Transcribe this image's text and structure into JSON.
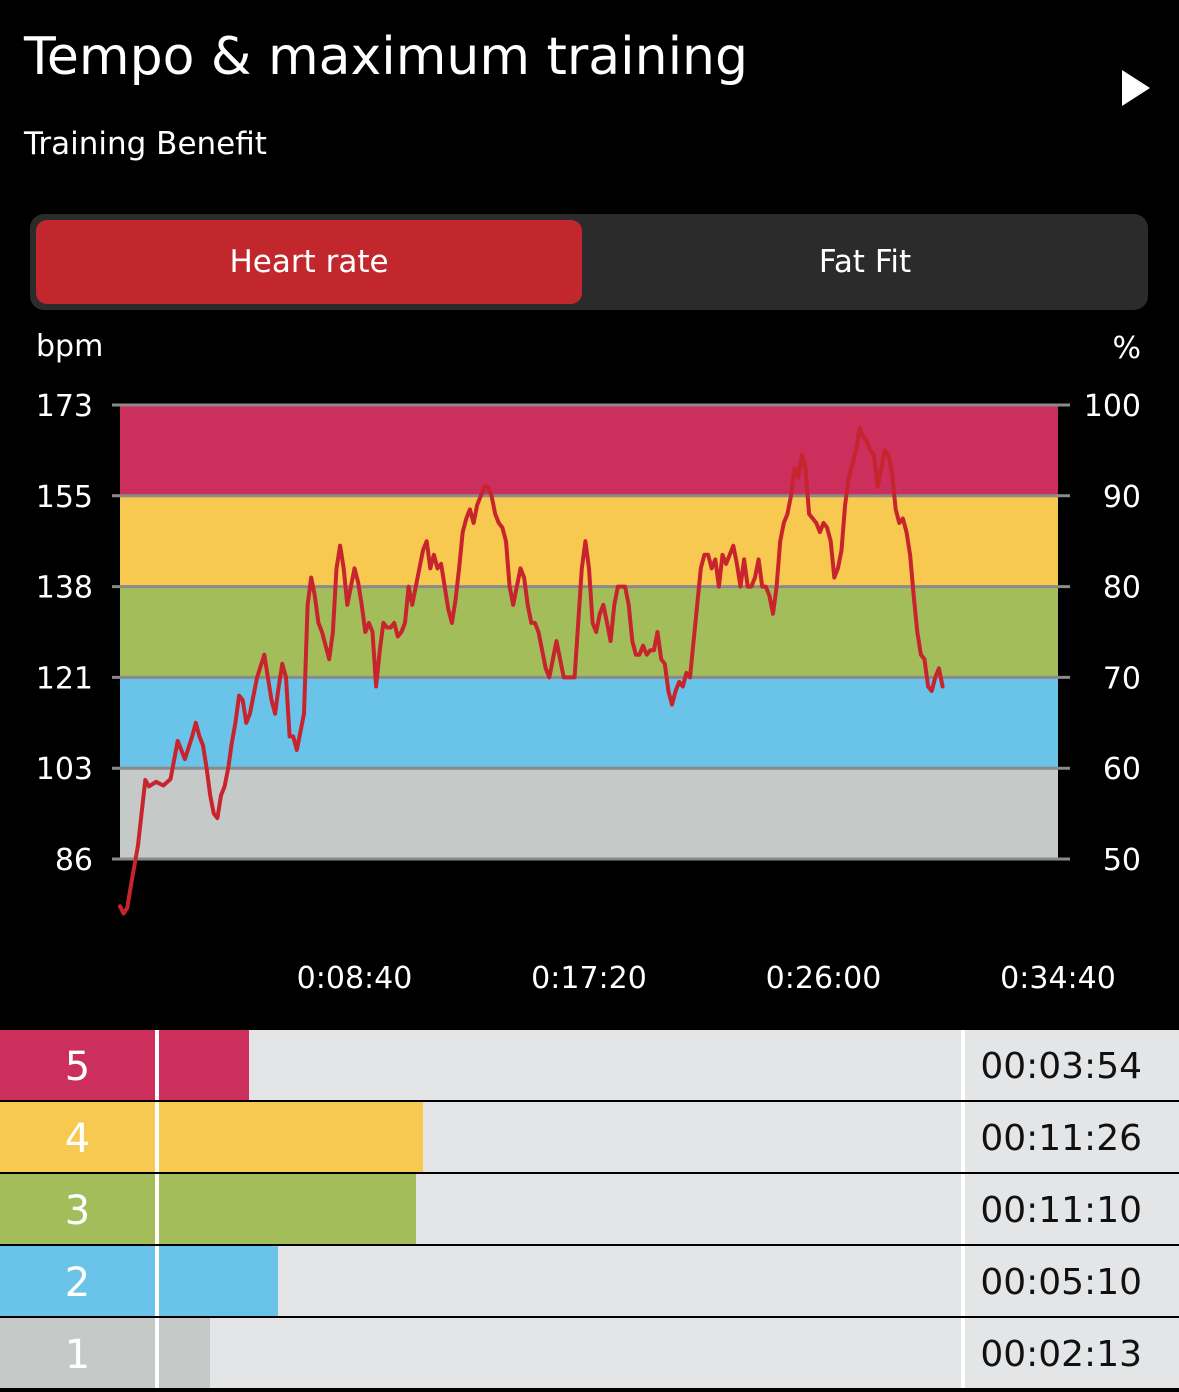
{
  "header": {
    "title": "Tempo & maximum training",
    "subtitle": "Training Benefit"
  },
  "icons": {
    "play": "play-triangle-icon"
  },
  "tabs": [
    {
      "label": "Heart rate",
      "active": true
    },
    {
      "label": "Fat Fit",
      "active": false
    }
  ],
  "colors": {
    "accent": "#c1272d",
    "line": "#c8242d",
    "zone5": "#cc2f5b",
    "zone4": "#f7c950",
    "zone3": "#a3bd5b",
    "zone2": "#6ac3e8",
    "zone1": "#c5cac9"
  },
  "chart_data": {
    "type": "line",
    "left_axis_unit": "bpm",
    "right_axis_unit": "%",
    "yticks_left": [
      "173",
      "155",
      "138",
      "121",
      "103",
      "86"
    ],
    "yticks_right": [
      "100",
      "90",
      "80",
      "70",
      "60",
      "50"
    ],
    "ylim_pct": [
      50,
      100
    ],
    "xlim_sec": [
      0,
      2080
    ],
    "xticks": [
      {
        "sec": 520,
        "label": "0:08:40"
      },
      {
        "sec": 1040,
        "label": "0:17:20"
      },
      {
        "sec": 1560,
        "label": "0:26:00"
      },
      {
        "sec": 2080,
        "label": "0:34:40"
      }
    ],
    "zone_bands_pct": [
      {
        "zone": 5,
        "from": 90,
        "to": 100
      },
      {
        "zone": 4,
        "from": 80,
        "to": 90
      },
      {
        "zone": 3,
        "from": 70,
        "to": 80
      },
      {
        "zone": 2,
        "from": 60,
        "to": 70
      },
      {
        "zone": 1,
        "from": 50,
        "to": 60
      }
    ],
    "series": [
      {
        "points": [
          [
            0,
            44.8
          ],
          [
            8,
            44.0
          ],
          [
            16,
            44.6
          ],
          [
            24,
            47.0
          ],
          [
            40,
            51.5
          ],
          [
            56,
            58.7
          ],
          [
            64,
            58.0
          ],
          [
            80,
            58.5
          ],
          [
            96,
            58.1
          ],
          [
            112,
            58.8
          ],
          [
            128,
            63.0
          ],
          [
            144,
            61.0
          ],
          [
            160,
            63.5
          ],
          [
            168,
            65.0
          ],
          [
            176,
            63.5
          ],
          [
            184,
            62.5
          ],
          [
            192,
            60.0
          ],
          [
            200,
            57.0
          ],
          [
            208,
            55.0
          ],
          [
            216,
            54.5
          ],
          [
            224,
            57.0
          ],
          [
            232,
            58.0
          ],
          [
            240,
            60.0
          ],
          [
            248,
            62.8
          ],
          [
            256,
            65.0
          ],
          [
            264,
            68.0
          ],
          [
            272,
            67.5
          ],
          [
            280,
            65.0
          ],
          [
            288,
            66.0
          ],
          [
            304,
            70.0
          ],
          [
            320,
            72.5
          ],
          [
            328,
            70.0
          ],
          [
            336,
            67.5
          ],
          [
            344,
            66.0
          ],
          [
            352,
            69.0
          ],
          [
            360,
            71.5
          ],
          [
            368,
            70.0
          ],
          [
            376,
            63.5
          ],
          [
            384,
            63.5
          ],
          [
            392,
            62.0
          ],
          [
            400,
            64.0
          ],
          [
            408,
            66.0
          ],
          [
            416,
            78.0
          ],
          [
            424,
            81.0
          ],
          [
            432,
            79.0
          ],
          [
            440,
            76.0
          ],
          [
            448,
            75.0
          ],
          [
            456,
            73.5
          ],
          [
            464,
            72.0
          ],
          [
            472,
            75.0
          ],
          [
            480,
            82.0
          ],
          [
            488,
            84.5
          ],
          [
            496,
            82.0
          ],
          [
            504,
            78.0
          ],
          [
            512,
            80.0
          ],
          [
            520,
            82.0
          ],
          [
            528,
            80.5
          ],
          [
            536,
            78.0
          ],
          [
            544,
            75.0
          ],
          [
            552,
            76.0
          ],
          [
            560,
            75.0
          ],
          [
            568,
            69.0
          ],
          [
            576,
            73.0
          ],
          [
            584,
            76.0
          ],
          [
            592,
            75.5
          ],
          [
            600,
            75.5
          ],
          [
            608,
            76.0
          ],
          [
            616,
            74.5
          ],
          [
            624,
            75.0
          ],
          [
            632,
            76.0
          ],
          [
            640,
            80.0
          ],
          [
            648,
            78.0
          ],
          [
            656,
            80.0
          ],
          [
            664,
            82.0
          ],
          [
            672,
            84.0
          ],
          [
            680,
            85.0
          ],
          [
            688,
            82.0
          ],
          [
            696,
            83.5
          ],
          [
            704,
            82.0
          ],
          [
            712,
            82.5
          ],
          [
            720,
            80.0
          ],
          [
            728,
            77.5
          ],
          [
            736,
            76.0
          ],
          [
            744,
            78.5
          ],
          [
            752,
            82.0
          ],
          [
            760,
            86.0
          ],
          [
            768,
            87.5
          ],
          [
            776,
            88.5
          ],
          [
            784,
            87.0
          ],
          [
            792,
            89.0
          ],
          [
            800,
            90.0
          ],
          [
            808,
            91.0
          ],
          [
            816,
            91.0
          ],
          [
            824,
            90.0
          ],
          [
            832,
            88.0
          ],
          [
            840,
            87.0
          ],
          [
            848,
            86.5
          ],
          [
            856,
            85.0
          ],
          [
            864,
            80.0
          ],
          [
            872,
            78.0
          ],
          [
            880,
            80.0
          ],
          [
            888,
            82.0
          ],
          [
            896,
            81.0
          ],
          [
            904,
            78.0
          ],
          [
            912,
            76.0
          ],
          [
            920,
            76.0
          ],
          [
            928,
            75.0
          ],
          [
            936,
            73.0
          ],
          [
            944,
            71.0
          ],
          [
            952,
            70.0
          ],
          [
            960,
            72.0
          ],
          [
            968,
            74.0
          ],
          [
            976,
            72.0
          ],
          [
            984,
            70.0
          ],
          [
            992,
            70.0
          ],
          [
            1000,
            70.0
          ],
          [
            1008,
            70.0
          ],
          [
            1016,
            76.0
          ],
          [
            1024,
            82.0
          ],
          [
            1032,
            85.0
          ],
          [
            1040,
            82.0
          ],
          [
            1048,
            76.0
          ],
          [
            1056,
            75.0
          ],
          [
            1064,
            77.0
          ],
          [
            1072,
            78.0
          ],
          [
            1080,
            76.0
          ],
          [
            1088,
            74.0
          ],
          [
            1096,
            78.0
          ],
          [
            1104,
            80.0
          ],
          [
            1112,
            80.0
          ],
          [
            1120,
            80.0
          ],
          [
            1128,
            78.0
          ],
          [
            1136,
            74.0
          ],
          [
            1144,
            72.5
          ],
          [
            1152,
            72.5
          ],
          [
            1160,
            73.5
          ],
          [
            1168,
            72.5
          ],
          [
            1176,
            73.0
          ],
          [
            1184,
            73.0
          ],
          [
            1192,
            75.0
          ],
          [
            1200,
            72.0
          ],
          [
            1208,
            71.5
          ],
          [
            1216,
            68.5
          ],
          [
            1224,
            67.0
          ],
          [
            1232,
            68.5
          ],
          [
            1240,
            69.5
          ],
          [
            1248,
            69.0
          ],
          [
            1256,
            70.5
          ],
          [
            1264,
            70.0
          ],
          [
            1272,
            74.0
          ],
          [
            1280,
            78.0
          ],
          [
            1288,
            82.0
          ],
          [
            1296,
            83.5
          ],
          [
            1304,
            83.5
          ],
          [
            1312,
            82.0
          ],
          [
            1320,
            83.0
          ],
          [
            1328,
            80.0
          ],
          [
            1336,
            83.5
          ],
          [
            1344,
            82.5
          ],
          [
            1352,
            83.5
          ],
          [
            1360,
            84.5
          ],
          [
            1368,
            82.5
          ],
          [
            1376,
            80.0
          ],
          [
            1384,
            83.0
          ],
          [
            1392,
            80.0
          ],
          [
            1400,
            80.0
          ],
          [
            1408,
            81.0
          ],
          [
            1416,
            83.0
          ],
          [
            1424,
            80.0
          ],
          [
            1432,
            80.0
          ],
          [
            1440,
            79.0
          ],
          [
            1448,
            77.0
          ],
          [
            1456,
            80.0
          ],
          [
            1464,
            85.0
          ],
          [
            1472,
            87.0
          ],
          [
            1480,
            88.0
          ],
          [
            1488,
            90.0
          ],
          [
            1496,
            93.0
          ],
          [
            1504,
            92.0
          ],
          [
            1512,
            94.5
          ],
          [
            1520,
            93.0
          ],
          [
            1528,
            88.0
          ],
          [
            1536,
            87.5
          ],
          [
            1544,
            87.0
          ],
          [
            1552,
            86.0
          ],
          [
            1560,
            87.0
          ],
          [
            1568,
            86.5
          ],
          [
            1576,
            85.0
          ],
          [
            1584,
            81.0
          ],
          [
            1592,
            82.0
          ],
          [
            1600,
            84.0
          ],
          [
            1608,
            89.0
          ],
          [
            1616,
            92.0
          ],
          [
            1624,
            93.5
          ],
          [
            1632,
            95.0
          ],
          [
            1640,
            97.5
          ],
          [
            1648,
            96.5
          ],
          [
            1656,
            96.0
          ],
          [
            1664,
            95.0
          ],
          [
            1672,
            94.5
          ],
          [
            1680,
            91.0
          ],
          [
            1688,
            93.0
          ],
          [
            1696,
            95.0
          ],
          [
            1704,
            94.5
          ],
          [
            1712,
            92.5
          ],
          [
            1720,
            88.5
          ],
          [
            1728,
            87.0
          ],
          [
            1736,
            87.5
          ],
          [
            1744,
            86.0
          ],
          [
            1752,
            83.5
          ],
          [
            1760,
            79.0
          ],
          [
            1768,
            75.0
          ],
          [
            1776,
            72.5
          ],
          [
            1784,
            72.0
          ],
          [
            1792,
            69.0
          ],
          [
            1800,
            68.5
          ],
          [
            1808,
            70.0
          ],
          [
            1816,
            71.0
          ],
          [
            1824,
            69.0
          ]
        ]
      }
    ]
  },
  "zones": [
    {
      "num": "5",
      "duration": "00:03:54",
      "fraction": 0.112,
      "color": "#cc2f5b"
    },
    {
      "num": "4",
      "duration": "00:11:26",
      "fraction": 0.329,
      "color": "#f7c950"
    },
    {
      "num": "3",
      "duration": "00:11:10",
      "fraction": 0.321,
      "color": "#a3bd5b"
    },
    {
      "num": "2",
      "duration": "00:05:10",
      "fraction": 0.149,
      "color": "#6ac3e8"
    },
    {
      "num": "1",
      "duration": "00:02:13",
      "fraction": 0.064,
      "color": "#c5cac9"
    }
  ]
}
